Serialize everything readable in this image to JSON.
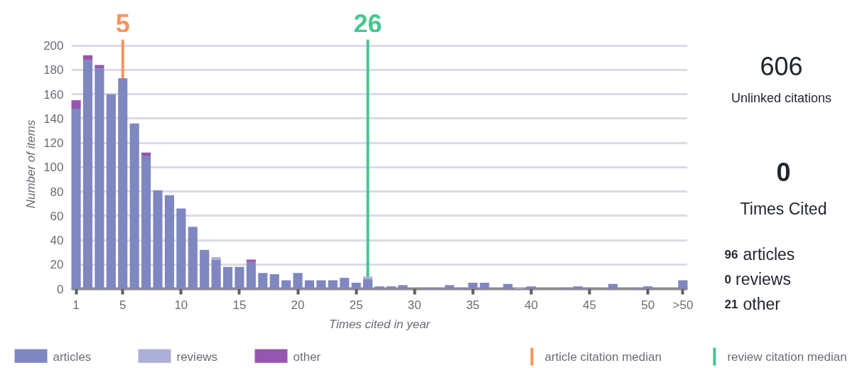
{
  "chart_data": {
    "type": "bar",
    "stacked": true,
    "x": [
      1,
      2,
      3,
      4,
      5,
      6,
      7,
      8,
      9,
      10,
      11,
      12,
      13,
      14,
      15,
      16,
      17,
      18,
      19,
      20,
      21,
      22,
      23,
      24,
      25,
      26,
      27,
      28,
      29,
      30,
      31,
      32,
      33,
      34,
      35,
      36,
      37,
      38,
      39,
      40,
      41,
      42,
      43,
      44,
      45,
      46,
      47,
      48,
      49,
      50,
      53
    ],
    "series": [
      {
        "name": "articles",
        "color": "#7e87bf",
        "values": [
          148,
          188,
          181,
          160,
          173,
          136,
          109,
          81,
          77,
          66,
          51,
          32,
          24,
          18,
          18,
          22,
          13,
          12,
          7,
          13,
          7,
          7,
          7,
          9,
          5,
          8,
          2,
          2,
          3,
          0,
          1,
          1,
          3,
          1,
          5,
          5,
          0,
          4,
          0,
          2,
          0,
          0,
          1,
          2,
          1,
          0,
          4,
          0,
          1,
          2,
          7
        ]
      },
      {
        "name": "reviews",
        "color": "#aab0d8",
        "values": [
          0,
          0,
          0,
          0,
          0,
          0,
          0,
          0,
          0,
          0,
          0,
          0,
          2,
          0,
          0,
          0,
          0,
          0,
          0,
          0,
          0,
          0,
          0,
          0,
          0,
          2,
          0,
          0,
          0,
          0,
          0,
          0,
          0,
          0,
          0,
          0,
          0,
          0,
          1,
          0,
          0,
          0,
          0,
          0,
          0,
          0,
          0,
          0,
          0,
          0,
          0
        ]
      },
      {
        "name": "other",
        "color": "#9656b0",
        "values": [
          7,
          4,
          3,
          0,
          0,
          0,
          3,
          0,
          0,
          0,
          0,
          0,
          0,
          0,
          0,
          2,
          0,
          0,
          0,
          0,
          0,
          0,
          0,
          0,
          0,
          0,
          0,
          0,
          0,
          0,
          0,
          0,
          0,
          0,
          0,
          0,
          0,
          0,
          0,
          0,
          0,
          0,
          0,
          0,
          0,
          0,
          0,
          0,
          0,
          0,
          0
        ]
      }
    ],
    "xlim": [
      0.6,
      53.4
    ],
    "xticks": [
      1,
      5,
      10,
      15,
      20,
      25,
      30,
      35,
      40,
      45,
      50,
      {
        "value": 53,
        "label": ">50"
      }
    ],
    "ylim": [
      0,
      205
    ],
    "yticks": [
      0,
      20,
      40,
      60,
      80,
      100,
      120,
      140,
      160,
      180,
      200
    ],
    "xlabel": "Times cited in year",
    "ylabel": "Number of items",
    "grid": "y",
    "legend": "bottom",
    "ref_lines": [
      {
        "axis": "x",
        "value": 5,
        "label": "article citation median",
        "color": "#f7955a"
      },
      {
        "axis": "x",
        "value": 26,
        "label": "review citation median",
        "color": "#44c78f"
      }
    ],
    "annotations": [
      "5",
      "26",
      "606",
      "Unlinked citations",
      "0",
      "Times Cited",
      "96",
      "articles",
      "0",
      "reviews",
      "21",
      "other"
    ]
  }
}
